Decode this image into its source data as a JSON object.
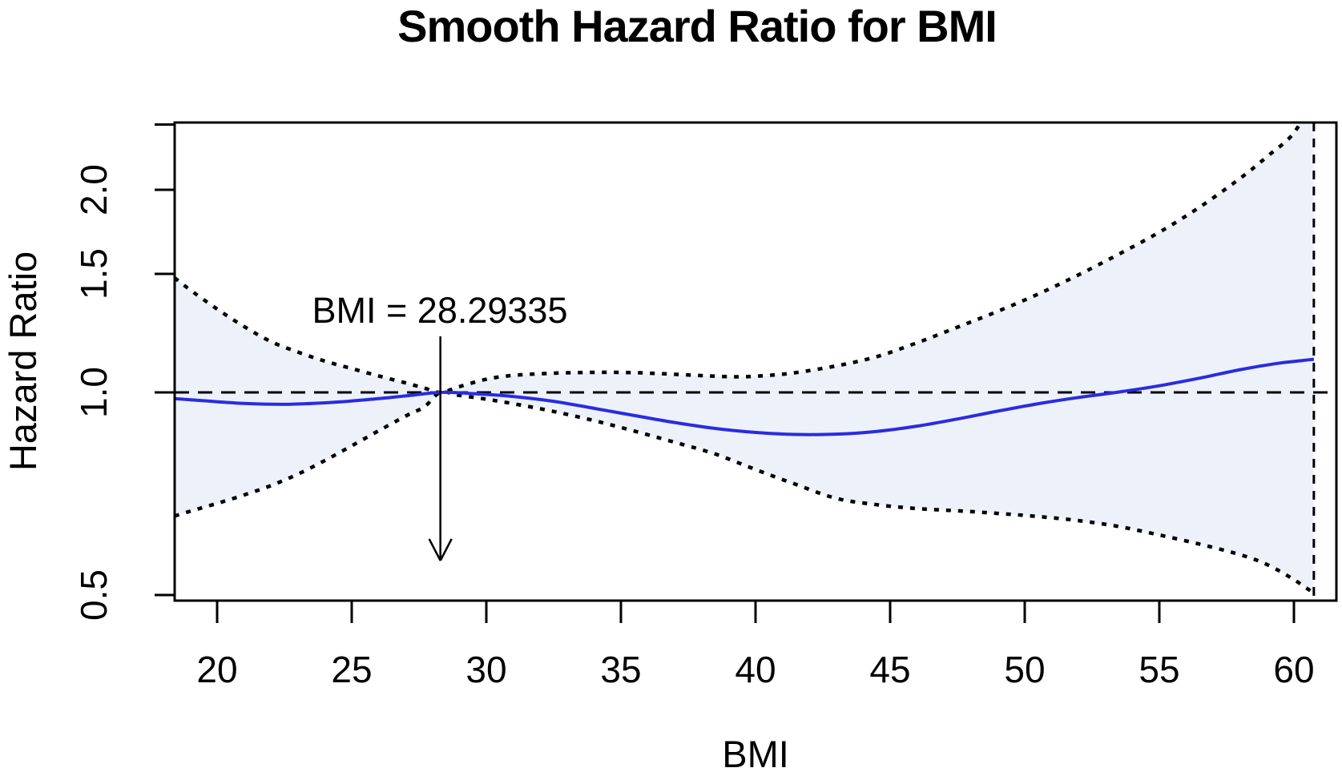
{
  "chart_data": {
    "type": "line",
    "title": "Smooth Hazard Ratio for BMI",
    "xlabel": "BMI",
    "ylabel": "Hazard Ratio",
    "y_scale": "log",
    "x_range": [
      18.42,
      61.6
    ],
    "y_range": [
      0.49,
      2.52
    ],
    "x_ticks": [
      "20",
      "25",
      "30",
      "35",
      "40",
      "45",
      "50",
      "55",
      "60"
    ],
    "x_tick_values": [
      20,
      25,
      30,
      35,
      40,
      45,
      50,
      55,
      60
    ],
    "y_ticks": [
      "0.5",
      "1.0",
      "1.5",
      "2.0"
    ],
    "y_tick_values": [
      0.5,
      1.0,
      1.5,
      2.0
    ],
    "y_tick_unlabeled": [
      2.5
    ],
    "grid": false,
    "legend": "none",
    "reference_hline": 1.0,
    "max_bmi_vline": 60.74,
    "reference": {
      "bmi": 28.29335,
      "hr": 1.0,
      "annotation": "BMI = 28.29335"
    },
    "colors": {
      "estimate_line": "#2b2be2",
      "ci_fill": "#edf2fa",
      "ci_dots": "#000000",
      "axis": "#000000",
      "background": "#ffffff"
    },
    "series": [
      {
        "name": "hazard-ratio-estimate",
        "style": "solid-blue",
        "points": [
          [
            18.42,
            0.979
          ],
          [
            19.5,
            0.972
          ],
          [
            21,
            0.963
          ],
          [
            22.5,
            0.96
          ],
          [
            24,
            0.965
          ],
          [
            25.5,
            0.975
          ],
          [
            27,
            0.988
          ],
          [
            28.29335,
            1.0
          ],
          [
            29.5,
            0.996
          ],
          [
            31,
            0.986
          ],
          [
            32.5,
            0.97
          ],
          [
            34,
            0.947
          ],
          [
            35.5,
            0.924
          ],
          [
            37,
            0.902
          ],
          [
            38.5,
            0.884
          ],
          [
            40,
            0.872
          ],
          [
            41.5,
            0.866
          ],
          [
            43,
            0.867
          ],
          [
            44.5,
            0.875
          ],
          [
            46,
            0.891
          ],
          [
            47.5,
            0.913
          ],
          [
            49,
            0.938
          ],
          [
            50.5,
            0.962
          ],
          [
            52,
            0.983
          ],
          [
            53.4,
            1.0
          ],
          [
            55,
            1.023
          ],
          [
            56.5,
            1.05
          ],
          [
            58,
            1.081
          ],
          [
            59.3,
            1.103
          ],
          [
            60.3,
            1.115
          ],
          [
            60.74,
            1.12
          ]
        ]
      },
      {
        "name": "upper-95ci",
        "style": "dotted-black",
        "points": [
          [
            18.42,
            1.48
          ],
          [
            19,
            1.42
          ],
          [
            20,
            1.33
          ],
          [
            21,
            1.253
          ],
          [
            22,
            1.19
          ],
          [
            23,
            1.148
          ],
          [
            24,
            1.113
          ],
          [
            25,
            1.085
          ],
          [
            26,
            1.058
          ],
          [
            27,
            1.033
          ],
          [
            27.7,
            1.015
          ],
          [
            28.29335,
            1.0
          ],
          [
            29,
            1.02
          ],
          [
            30,
            1.046
          ],
          [
            31,
            1.06
          ],
          [
            32.5,
            1.068
          ],
          [
            34,
            1.071
          ],
          [
            35.5,
            1.07
          ],
          [
            37,
            1.064
          ],
          [
            38.5,
            1.057
          ],
          [
            39.5,
            1.055
          ],
          [
            40.5,
            1.06
          ],
          [
            41.5,
            1.07
          ],
          [
            43,
            1.095
          ],
          [
            44.5,
            1.13
          ],
          [
            46,
            1.185
          ],
          [
            47.5,
            1.25
          ],
          [
            49,
            1.32
          ],
          [
            50.5,
            1.4
          ],
          [
            52,
            1.495
          ],
          [
            53.5,
            1.605
          ],
          [
            55,
            1.73
          ],
          [
            56.5,
            1.885
          ],
          [
            58,
            2.08
          ],
          [
            59,
            2.24
          ],
          [
            60,
            2.43
          ],
          [
            60.74,
            2.75
          ]
        ]
      },
      {
        "name": "lower-95ci",
        "style": "dotted-black",
        "points": [
          [
            18.42,
            0.655
          ],
          [
            19,
            0.666
          ],
          [
            20,
            0.684
          ],
          [
            21,
            0.704
          ],
          [
            22,
            0.727
          ],
          [
            23,
            0.756
          ],
          [
            24,
            0.792
          ],
          [
            25,
            0.833
          ],
          [
            26,
            0.877
          ],
          [
            27,
            0.922
          ],
          [
            27.7,
            0.952
          ],
          [
            28.29335,
            1.0
          ],
          [
            29,
            0.99
          ],
          [
            30,
            0.977
          ],
          [
            31,
            0.962
          ],
          [
            32.5,
            0.937
          ],
          [
            34,
            0.908
          ],
          [
            35.5,
            0.876
          ],
          [
            37,
            0.843
          ],
          [
            38.5,
            0.81
          ],
          [
            40,
            0.768
          ],
          [
            41.5,
            0.73
          ],
          [
            43,
            0.696
          ],
          [
            44.5,
            0.681
          ],
          [
            46,
            0.672
          ],
          [
            47.5,
            0.667
          ],
          [
            49,
            0.661
          ],
          [
            50.5,
            0.654
          ],
          [
            52,
            0.645
          ],
          [
            53.5,
            0.632
          ],
          [
            55,
            0.614
          ],
          [
            56.5,
            0.595
          ],
          [
            58,
            0.574
          ],
          [
            59,
            0.555
          ],
          [
            60,
            0.527
          ],
          [
            60.74,
            0.503
          ]
        ]
      }
    ]
  }
}
